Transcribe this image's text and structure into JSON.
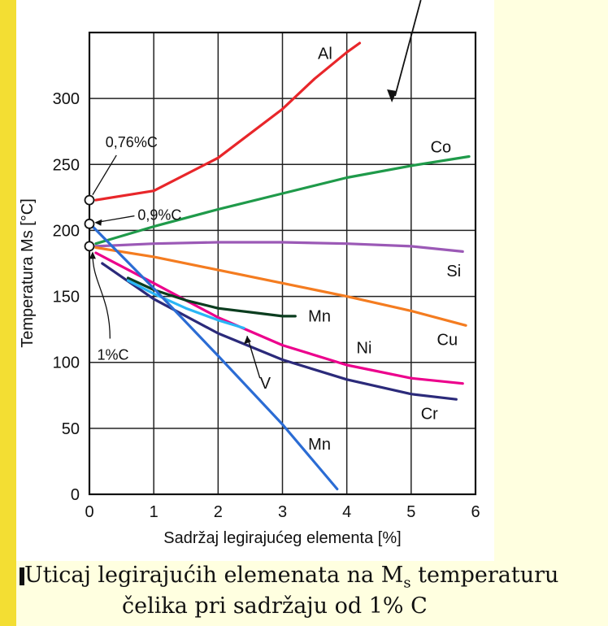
{
  "chart_data": {
    "type": "line",
    "xlabel": "Sadržaj legirajućeg elementa [%]",
    "ylabel": "Temperatura Ms [°C]",
    "xlim": [
      0,
      6
    ],
    "ylim": [
      0,
      350
    ],
    "xticks": [
      "0",
      "1",
      "2",
      "3",
      "4",
      "5",
      "6"
    ],
    "yticks": [
      "0",
      "50",
      "100",
      "150",
      "200",
      "250",
      "300"
    ],
    "grid": true,
    "series": [
      {
        "name": "Al",
        "color": "#e8262a",
        "x": [
          0.1,
          1,
          2,
          3,
          3.5,
          4,
          4.2
        ],
        "y": [
          223,
          230,
          255,
          292,
          315,
          335,
          342
        ]
      },
      {
        "name": "Co",
        "color": "#1f9a4a",
        "x": [
          0.1,
          1,
          2,
          3,
          4,
          5,
          5.9
        ],
        "y": [
          190,
          203,
          216,
          228,
          240,
          249,
          256
        ]
      },
      {
        "name": "Si",
        "color": "#9b59b6",
        "x": [
          0.1,
          1,
          2,
          3,
          4,
          5,
          5.8
        ],
        "y": [
          188,
          190,
          191,
          191,
          190,
          188,
          184
        ]
      },
      {
        "name": "Cu",
        "color": "#f47c20",
        "x": [
          0.1,
          1,
          2,
          3,
          4,
          5,
          5.85
        ],
        "y": [
          187,
          180,
          170,
          160,
          150,
          139,
          128
        ]
      },
      {
        "name": "Ni",
        "color": "#ec008c",
        "x": [
          0.1,
          1,
          2,
          3,
          4,
          5,
          5.8
        ],
        "y": [
          183,
          160,
          134,
          113,
          98,
          88,
          84
        ]
      },
      {
        "name": "Cr",
        "color": "#2b2a7a",
        "x": [
          0.2,
          1,
          2,
          3,
          4,
          5,
          5.7
        ],
        "y": [
          175,
          148,
          122,
          102,
          87,
          76,
          72
        ]
      },
      {
        "name": "Mn",
        "color": "#0b3d1f",
        "x": [
          0.6,
          1,
          1.5,
          2,
          2.5,
          3,
          3.2
        ],
        "y": [
          164,
          155,
          147,
          141,
          138,
          135,
          135
        ]
      },
      {
        "name": "V",
        "color": "#29b6f6",
        "x": [
          0.6,
          1,
          1.5,
          2,
          2.4
        ],
        "y": [
          162,
          152,
          141,
          132,
          126
        ]
      },
      {
        "name": "Mn",
        "color": "#2b6cd4",
        "x": [
          0.05,
          1,
          2,
          3,
          3.85
        ],
        "y": [
          203,
          156,
          105,
          53,
          4
        ]
      }
    ],
    "annotations": {
      "pt_076": "0,76%C",
      "pt_09": "0,9%C",
      "pt_1": "1%C"
    },
    "points": [
      {
        "x": 0,
        "y": 223
      },
      {
        "x": 0,
        "y": 205
      },
      {
        "x": 0,
        "y": 188
      }
    ]
  },
  "caption": {
    "line1": "Uticaj legirajućih elemenata na M",
    "line1_sub": "s",
    "line1_end": " temperaturu",
    "line2": "čelika pri sadržaju od 1% C"
  }
}
